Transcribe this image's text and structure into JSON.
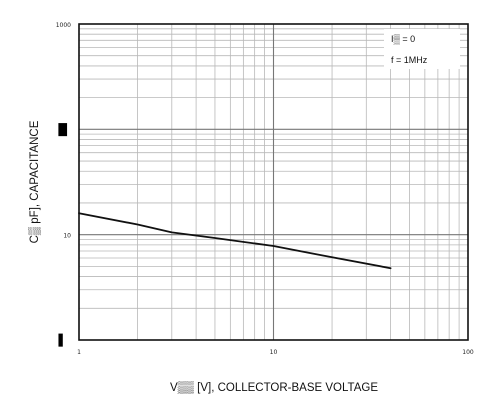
{
  "chart_data": {
    "type": "line",
    "title": "",
    "xlabel": "V▒▒ [V], COLLECTOR-BASE VOLTAGE",
    "ylabel": "C▒  pF], CAPACITANCE",
    "x_scale": "log",
    "y_scale": "log",
    "xlim": [
      1,
      100
    ],
    "ylim": [
      1,
      1000
    ],
    "grid": true,
    "x_ticks": [
      {
        "value": 1,
        "label": "1"
      },
      {
        "value": 10,
        "label": "10"
      },
      {
        "value": 100,
        "label": "100"
      }
    ],
    "y_ticks": [
      {
        "value": 1,
        "label": "▌"
      },
      {
        "value": 10,
        "label": "10"
      },
      {
        "value": 100,
        "label": "█"
      },
      {
        "value": 1000,
        "label": "1000"
      }
    ],
    "series": [
      {
        "x": [
          1,
          2,
          3,
          5,
          10,
          20,
          40
        ],
        "y": [
          16,
          12.5,
          10.5,
          9.3,
          7.8,
          6.1,
          4.8
        ],
        "color": "#111111"
      }
    ],
    "annotations": [
      {
        "text": "I▒ = 0"
      },
      {
        "text": "f = 1MHz"
      }
    ]
  }
}
